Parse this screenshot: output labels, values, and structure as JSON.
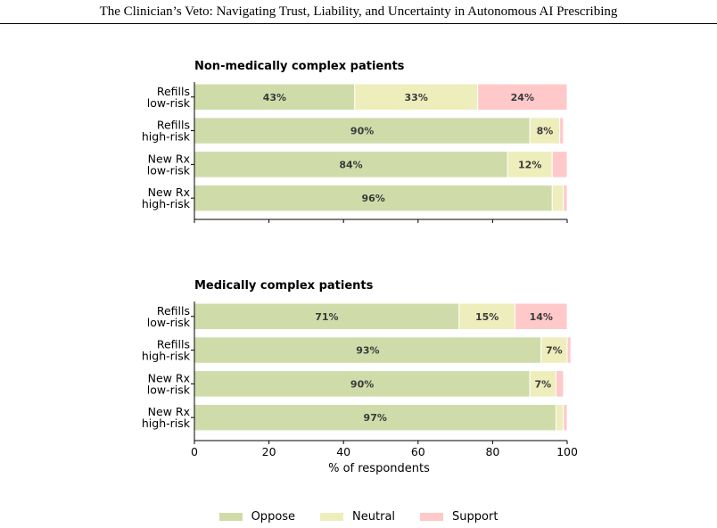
{
  "header": {
    "running_title": "The Clinician’s Veto: Navigating Trust, Liability, and Uncertainty in Autonomous AI Prescribing"
  },
  "colors": {
    "oppose": "#cfdcaa",
    "neutral": "#eeeebc",
    "support": "#ffc9c9"
  },
  "chart_data": [
    {
      "type": "bar",
      "orientation": "horizontal",
      "stacked": true,
      "title": "Non-medically complex patients",
      "categories": [
        "Refills\nlow-risk",
        "Refills\nhigh-risk",
        "New Rx\nlow-risk",
        "New Rx\nhigh-risk"
      ],
      "series": [
        {
          "name": "Oppose",
          "values": [
            43,
            90,
            84,
            96
          ],
          "labels": [
            "43%",
            "90%",
            "84%",
            "96%"
          ]
        },
        {
          "name": "Neutral",
          "values": [
            33,
            8,
            12,
            3
          ],
          "labels": [
            "33%",
            "8%",
            "12%",
            ""
          ]
        },
        {
          "name": "Support",
          "values": [
            24,
            1,
            4,
            1
          ],
          "labels": [
            "24%",
            "",
            "",
            ""
          ]
        }
      ],
      "xlim": [
        0,
        100
      ],
      "xticks": [],
      "xlabel": ""
    },
    {
      "type": "bar",
      "orientation": "horizontal",
      "stacked": true,
      "title": "Medically complex patients",
      "categories": [
        "Refills\nlow-risk",
        "Refills\nhigh-risk",
        "New Rx\nlow-risk",
        "New Rx\nhigh-risk"
      ],
      "series": [
        {
          "name": "Oppose",
          "values": [
            71,
            93,
            90,
            97
          ],
          "labels": [
            "71%",
            "93%",
            "90%",
            "97%"
          ]
        },
        {
          "name": "Neutral",
          "values": [
            15,
            7,
            7,
            2
          ],
          "labels": [
            "15%",
            "7%",
            "7%",
            ""
          ]
        },
        {
          "name": "Support",
          "values": [
            14,
            1,
            2,
            1
          ],
          "labels": [
            "14%",
            "",
            "",
            ""
          ]
        }
      ],
      "xlim": [
        0,
        100
      ],
      "xticks": [
        "0",
        "20",
        "40",
        "60",
        "80",
        "100"
      ],
      "xlabel": "% of respondents"
    }
  ],
  "legend": {
    "placement": "bottom-center",
    "items": [
      "Oppose",
      "Neutral",
      "Support"
    ]
  }
}
